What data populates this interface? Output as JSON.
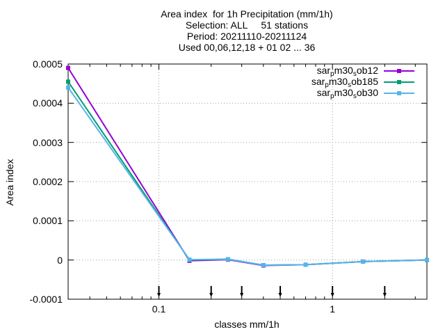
{
  "chart_data": {
    "type": "line",
    "title_lines": [
      "Area index  for 1h Precipitation (mm/1h)",
      "Selection: ALL     51 stations",
      "Period: 20211110-20211124",
      "Used 00,06,12,18 + 01 02 ... 36"
    ],
    "xlabel": "classes mm/1h",
    "ylabel": "Area index",
    "x_scale": "log",
    "xlim": [
      0.03,
      3.5
    ],
    "ylim": [
      -0.0001,
      0.0005
    ],
    "yticks": [
      -0.0001,
      0,
      0.0001,
      0.0002,
      0.0003,
      0.0004,
      0.0005
    ],
    "ytick_labels": [
      "-0.0001",
      "0",
      "0.0001",
      "0.0002",
      "0.0003",
      "0.0004",
      "0.0005"
    ],
    "xticks": [
      0.1,
      1
    ],
    "xtick_labels": [
      "0.1",
      "1"
    ],
    "grid": true,
    "legend_position": "top-right",
    "x": [
      0.03,
      0.15,
      0.25,
      0.4,
      0.7,
      1.5,
      3.5
    ],
    "marker_ticks_x": [
      0.1,
      0.2,
      0.3,
      0.5,
      1,
      2
    ],
    "series": [
      {
        "name": "sar_pm30_sob12",
        "label_parts": [
          "sar",
          "p",
          "m30",
          "s",
          "ob12"
        ],
        "color": "#9400d3",
        "values": [
          0.00049,
          -2e-06,
          1e-06,
          -1.4e-05,
          -1.2e-05,
          -4e-06,
          0.0
        ]
      },
      {
        "name": "sar_pm30_sob185",
        "label_parts": [
          "sar",
          "p",
          "m30",
          "s",
          "ob185"
        ],
        "color": "#009e73",
        "values": [
          0.000455,
          0.0,
          2e-06,
          -1.3e-05,
          -1.2e-05,
          -4e-06,
          0.0
        ]
      },
      {
        "name": "sar_pm30_sob30",
        "label_parts": [
          "sar",
          "p",
          "m30",
          "s",
          "ob30"
        ],
        "color": "#56b4e9",
        "values": [
          0.00044,
          1e-06,
          2e-06,
          -1.3e-05,
          -1.2e-05,
          -4e-06,
          0.0
        ]
      }
    ]
  }
}
